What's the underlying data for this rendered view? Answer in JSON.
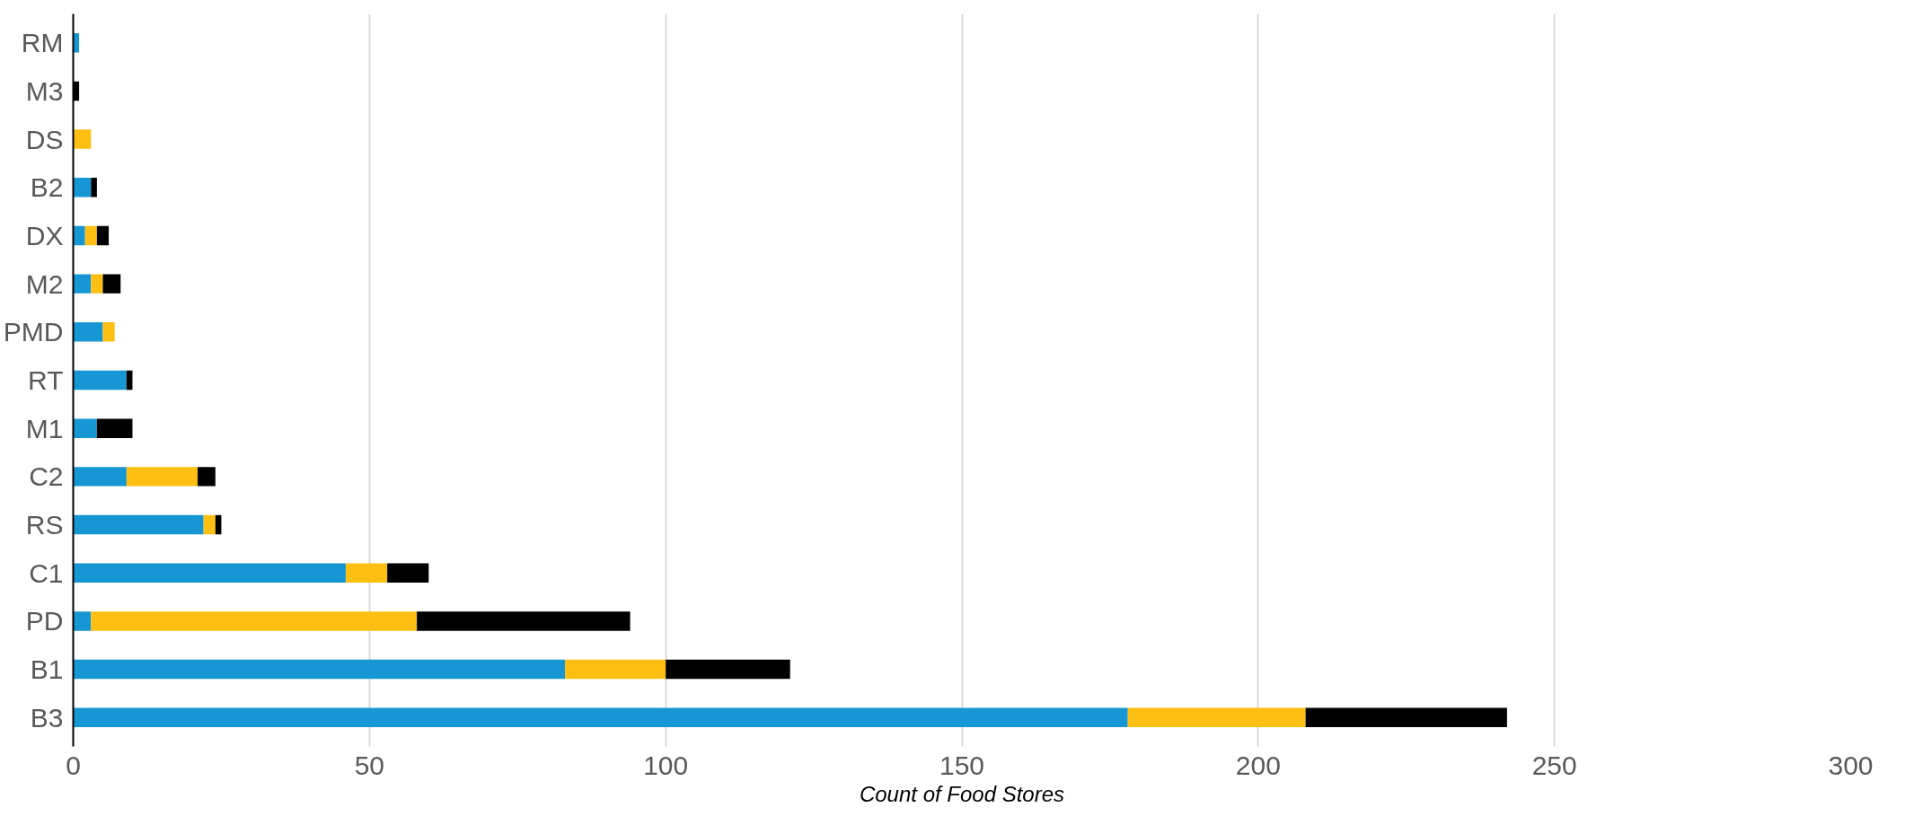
{
  "chart_data": {
    "type": "bar",
    "orientation": "horizontal",
    "stacked": true,
    "xlabel": "Count of Food Stores",
    "categories": [
      "RM",
      "M3",
      "DS",
      "B2",
      "DX",
      "M2",
      "PMD",
      "RT",
      "M1",
      "C2",
      "RS",
      "C1",
      "PD",
      "B1",
      "B3"
    ],
    "series": [
      {
        "color": "#1696d2",
        "values": [
          1,
          0,
          0,
          3,
          2,
          3,
          5,
          9,
          4,
          9,
          22,
          46,
          3,
          83,
          178
        ]
      },
      {
        "color": "#fdbf11",
        "values": [
          0,
          0,
          3,
          0,
          2,
          2,
          2,
          0,
          0,
          12,
          2,
          7,
          55,
          17,
          30
        ]
      },
      {
        "color": "#000000",
        "values": [
          0,
          1,
          0,
          1,
          2,
          3,
          0,
          1,
          6,
          3,
          1,
          7,
          36,
          21,
          34
        ]
      }
    ],
    "xlim": [
      0,
      300
    ],
    "xticks": [
      0,
      50,
      100,
      150,
      200,
      250,
      300
    ],
    "grid": "x"
  }
}
